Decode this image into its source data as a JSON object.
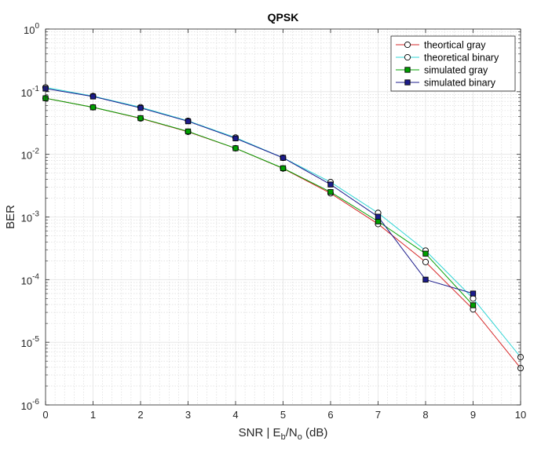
{
  "chart_data": {
    "type": "line",
    "title": "QPSK",
    "xlabel": {
      "main": "SNR | E",
      "sub1": "b",
      "mid": "/N",
      "sub2": "o",
      "end": " (dB)"
    },
    "ylabel": "BER",
    "xlim": [
      0,
      10
    ],
    "ylim": [
      1e-06,
      1
    ],
    "yscale": "log",
    "grid": "major and minor",
    "legend_position": "top-right",
    "x": [
      0,
      1,
      2,
      3,
      4,
      5,
      6,
      7,
      8,
      9,
      10
    ],
    "x_tick_labels": [
      "0",
      "1",
      "2",
      "3",
      "4",
      "5",
      "6",
      "7",
      "8",
      "9",
      "10"
    ],
    "y_tick_labels": [
      {
        "base": "10",
        "exp": "0"
      },
      {
        "base": "10",
        "exp": "-1"
      },
      {
        "base": "10",
        "exp": "-2"
      },
      {
        "base": "10",
        "exp": "-3"
      },
      {
        "base": "10",
        "exp": "-4"
      },
      {
        "base": "10",
        "exp": "-5"
      },
      {
        "base": "10",
        "exp": "-6"
      }
    ],
    "series": [
      {
        "name": "theortical gray",
        "color": "#d62728",
        "marker": "open-circle",
        "x": [
          0,
          1,
          2,
          3,
          4,
          5,
          6,
          7,
          8,
          9,
          10
        ],
        "values": [
          0.0786,
          0.0563,
          0.0375,
          0.0229,
          0.0125,
          0.00595,
          0.00239,
          0.000773,
          0.000191,
          3.36e-05,
          3.87e-06
        ]
      },
      {
        "name": "theoretical binary",
        "color": "#30d5d5",
        "marker": "open-circle",
        "x": [
          0,
          1,
          2,
          3,
          4,
          5,
          6,
          7,
          8,
          9,
          10
        ],
        "values": [
          0.117,
          0.085,
          0.0565,
          0.0342,
          0.0185,
          0.0088,
          0.0036,
          0.00116,
          0.00029,
          5e-05,
          5.8e-06
        ]
      },
      {
        "name": "simulated gray",
        "color": "#00a000",
        "marker": "filled-square",
        "x": [
          0,
          1,
          2,
          3,
          4,
          5,
          6,
          7,
          8,
          9
        ],
        "values": [
          0.0786,
          0.0563,
          0.0378,
          0.0232,
          0.0125,
          0.006,
          0.0025,
          0.00085,
          0.00026,
          3.9e-05
        ]
      },
      {
        "name": "simulated binary",
        "color": "#1c1c8c",
        "marker": "filled-square",
        "x": [
          0,
          1,
          2,
          3,
          4,
          5,
          6,
          7,
          8,
          9
        ],
        "values": [
          0.112,
          0.0838,
          0.055,
          0.0337,
          0.018,
          0.0088,
          0.0033,
          0.00101,
          0.0001,
          6e-05
        ]
      }
    ]
  }
}
